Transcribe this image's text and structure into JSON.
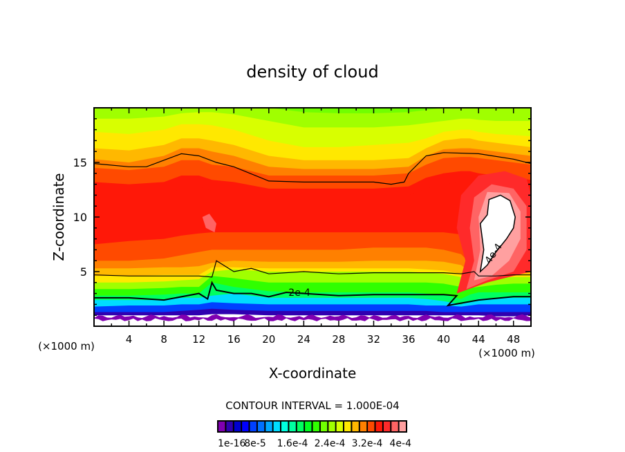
{
  "chart_data": {
    "type": "heatmap",
    "subtype": "filled-contour",
    "title": "density of cloud",
    "xlabel": "X-coordinate",
    "ylabel": "Z-coordinate",
    "x_units": "(×1000 m)",
    "xlim": [
      0,
      50
    ],
    "ylim": [
      0,
      20
    ],
    "x_ticks": [
      4,
      8,
      12,
      16,
      20,
      24,
      28,
      32,
      36,
      40,
      44,
      48
    ],
    "x_minor_step": 2,
    "y_ticks": [
      5,
      10,
      15
    ],
    "y_minor_step": 1,
    "contour_interval_label": "CONTOUR INTERVAL = 1.000E-04",
    "colorbar": {
      "colors": [
        "#8000b0",
        "#3000b0",
        "#0000d0",
        "#0000ff",
        "#0040ff",
        "#0070ff",
        "#00a8ff",
        "#00dcff",
        "#00ffe0",
        "#00ffa0",
        "#00ff60",
        "#00ff20",
        "#30ff00",
        "#70ff00",
        "#a0ff00",
        "#d8ff00",
        "#ffe800",
        "#ffb800",
        "#ff8000",
        "#ff4a00",
        "#ff1808",
        "#ff2a2a",
        "#ff6464",
        "#ffa0a0"
      ],
      "tick_labels": [
        "1e-16",
        "8e-5",
        "1.6e-4",
        "2.4e-4",
        "3.2e-4",
        "4e-4"
      ]
    },
    "contour_labels": [
      {
        "text": "2e-4",
        "x": 23.5,
        "z": 3.1
      },
      {
        "text": "4e-4",
        "x": 46,
        "z": 6.5
      }
    ],
    "band_profiles": {
      "x": [
        0,
        4,
        8,
        10,
        12,
        13.5,
        16,
        20,
        24,
        28,
        32,
        36,
        38,
        40,
        42,
        43,
        44,
        46,
        48,
        50
      ],
      "levels": [
        {
          "color_index": 1,
          "z": [
            1.0,
            1.0,
            1.0,
            1.0,
            1.0,
            1.1,
            1.1,
            1.0,
            1.0,
            1.0,
            1.0,
            1.0,
            1.0,
            1.0,
            1.0,
            1.0,
            1.0,
            0.9,
            0.9,
            1.0
          ]
        },
        {
          "color_index": 4,
          "z": [
            1.3,
            1.3,
            1.3,
            1.4,
            1.5,
            1.6,
            1.5,
            1.4,
            1.4,
            1.4,
            1.4,
            1.4,
            1.4,
            1.3,
            1.3,
            1.3,
            1.3,
            1.3,
            1.3,
            1.3
          ]
        },
        {
          "color_index": 7,
          "z": [
            1.8,
            1.9,
            1.9,
            2.0,
            2.0,
            2.2,
            2.1,
            2.0,
            2.0,
            2.0,
            2.0,
            2.0,
            1.9,
            1.9,
            1.8,
            1.9,
            2.0,
            2.0,
            2.0,
            2.0
          ]
        },
        {
          "color_index": 10,
          "z": [
            2.4,
            2.4,
            2.4,
            2.6,
            2.6,
            2.8,
            3.0,
            2.6,
            2.6,
            2.6,
            2.6,
            2.6,
            2.5,
            2.3,
            2.0,
            2.3,
            2.5,
            2.6,
            2.6,
            2.6
          ]
        },
        {
          "color_index": 12,
          "z": [
            2.8,
            2.8,
            2.9,
            3.0,
            3.0,
            4.0,
            3.6,
            3.2,
            3.1,
            3.1,
            3.1,
            3.1,
            3.0,
            2.9,
            2.5,
            2.9,
            3.1,
            3.1,
            3.1,
            3.1
          ]
        },
        {
          "color_index": 14,
          "z": [
            3.4,
            3.4,
            3.5,
            3.6,
            3.6,
            4.6,
            4.4,
            4.0,
            4.0,
            4.0,
            4.0,
            4.0,
            4.0,
            3.9,
            3.6,
            3.5,
            3.6,
            3.8,
            3.9,
            3.9
          ]
        },
        {
          "color_index": 16,
          "z": [
            4.0,
            4.0,
            4.1,
            4.2,
            4.3,
            5.0,
            5.2,
            5.0,
            5.0,
            5.0,
            5.0,
            5.0,
            4.9,
            4.8,
            4.5,
            4.0,
            4.2,
            4.4,
            4.5,
            4.5
          ]
        },
        {
          "color_index": 17,
          "z": [
            4.6,
            4.6,
            4.7,
            4.7,
            4.7,
            5.4,
            5.4,
            5.3,
            5.3,
            5.3,
            5.3,
            5.3,
            5.2,
            5.1,
            4.8,
            4.3,
            4.5,
            4.7,
            4.8,
            4.8
          ]
        },
        {
          "color_index": 18,
          "z": [
            5.3,
            5.3,
            5.4,
            5.4,
            5.5,
            5.8,
            6.0,
            5.9,
            5.9,
            5.9,
            6.0,
            6.0,
            6.0,
            5.9,
            5.6,
            5.0,
            5.4,
            5.6,
            5.8,
            5.8
          ]
        },
        {
          "color_index": 19,
          "z": [
            6.0,
            6.0,
            6.2,
            6.5,
            6.8,
            7.0,
            7.0,
            7.0,
            7.0,
            7.0,
            7.2,
            7.2,
            7.2,
            7.0,
            6.6,
            5.8,
            6.2,
            6.5,
            6.6,
            6.6
          ]
        },
        {
          "color_index": 20,
          "z": [
            7.5,
            7.8,
            8.0,
            8.3,
            8.5,
            8.6,
            8.6,
            8.6,
            8.6,
            8.6,
            8.6,
            8.6,
            8.6,
            8.6,
            8.4,
            8.0,
            8.2,
            8.4,
            8.5,
            8.5
          ]
        },
        {
          "color_index": 20,
          "z": [
            12.3,
            12.2,
            12.0,
            12.6,
            12.8,
            12.4,
            12.2,
            11.8,
            11.8,
            11.8,
            11.8,
            12.0,
            12.6,
            13.0,
            13.2,
            13.0,
            13.0,
            12.8,
            12.6,
            12.5
          ]
        },
        {
          "color_index": 19,
          "z": [
            13.2,
            13.0,
            13.2,
            13.8,
            13.8,
            13.4,
            13.2,
            12.6,
            12.6,
            12.6,
            12.6,
            12.8,
            13.6,
            14.0,
            14.2,
            14.2,
            14.0,
            13.8,
            13.6,
            13.4
          ]
        },
        {
          "color_index": 18,
          "z": [
            14.5,
            14.3,
            14.6,
            15.2,
            15.2,
            14.8,
            14.6,
            13.8,
            13.8,
            13.8,
            13.8,
            14.0,
            14.8,
            15.4,
            15.5,
            15.5,
            15.4,
            15.2,
            15.0,
            14.8
          ]
        },
        {
          "color_index": 17,
          "z": [
            15.3,
            15.0,
            15.6,
            16.3,
            16.3,
            16.0,
            15.6,
            14.6,
            14.4,
            14.4,
            14.4,
            14.6,
            15.6,
            16.2,
            16.3,
            16.3,
            16.2,
            16.0,
            15.8,
            15.6
          ]
        },
        {
          "color_index": 16,
          "z": [
            16.3,
            16.1,
            16.6,
            17.2,
            17.2,
            17.0,
            16.6,
            15.6,
            15.2,
            15.2,
            15.2,
            15.4,
            16.3,
            17.0,
            17.2,
            17.2,
            17.0,
            16.8,
            16.6,
            16.4
          ]
        },
        {
          "color_index": 15,
          "z": [
            17.8,
            17.6,
            18.0,
            18.5,
            18.5,
            18.4,
            18.0,
            17.0,
            16.4,
            16.4,
            16.6,
            16.8,
            17.2,
            17.8,
            18.0,
            18.0,
            17.8,
            17.6,
            17.5,
            17.4
          ]
        },
        {
          "color_index": 14,
          "z": [
            19.0,
            19.0,
            19.2,
            19.5,
            19.6,
            19.6,
            19.4,
            18.8,
            18.2,
            18.2,
            18.2,
            18.4,
            18.6,
            18.8,
            19.0,
            19.0,
            18.9,
            18.8,
            18.8,
            18.8
          ]
        },
        {
          "color_index": 13,
          "z": [
            20,
            20,
            20,
            20,
            20,
            20,
            20,
            20,
            19.6,
            19.5,
            19.5,
            19.6,
            19.8,
            20,
            20,
            20,
            20,
            20,
            20,
            20
          ]
        }
      ]
    },
    "contour_lines": [
      {
        "level": "1.6e-4 (upper)",
        "x": [
          0,
          4,
          6,
          8,
          10,
          12,
          14,
          16,
          20,
          24,
          28,
          32,
          34,
          35.5,
          36,
          38,
          40,
          44,
          48,
          50
        ],
        "z": [
          14.9,
          14.6,
          14.6,
          15.2,
          15.8,
          15.6,
          15.0,
          14.6,
          13.3,
          13.2,
          13.2,
          13.2,
          13.0,
          13.2,
          14.0,
          15.6,
          15.9,
          15.8,
          15.3,
          14.9
        ]
      },
      {
        "level": "1.6e-4 (lower)",
        "x": [
          0,
          4,
          8,
          12,
          13.5,
          14,
          16,
          18,
          20,
          24,
          28,
          32,
          36,
          40,
          42,
          43.5,
          44,
          46,
          48,
          50
        ],
        "z": [
          4.7,
          4.6,
          4.6,
          4.6,
          4.5,
          6.0,
          5.0,
          5.3,
          4.8,
          5.0,
          4.8,
          4.9,
          4.9,
          4.9,
          4.8,
          5.0,
          4.6,
          4.6,
          4.7,
          4.7
        ]
      },
      {
        "level": "2e-4",
        "x": [
          0,
          4,
          8,
          12,
          13.0,
          13.5,
          14,
          16,
          18,
          20,
          22,
          24,
          28,
          32,
          36,
          40,
          41.5,
          40.5,
          44,
          48,
          50
        ],
        "z": [
          2.6,
          2.6,
          2.4,
          3.0,
          2.5,
          4.0,
          3.3,
          3.0,
          3.0,
          2.7,
          3.1,
          3.0,
          2.8,
          2.9,
          2.9,
          2.9,
          2.8,
          1.9,
          2.4,
          2.7,
          2.7
        ]
      }
    ],
    "white_region_4e-4": {
      "x": [
        45.2,
        46.5,
        47.6,
        48.2,
        48.0,
        47.2,
        46.0,
        45.0,
        44.2,
        44.6,
        44.2,
        45.0,
        45.2
      ],
      "z": [
        11.6,
        12.0,
        11.5,
        10.0,
        9.0,
        8.0,
        6.8,
        5.6,
        5.0,
        7.0,
        9.4,
        10.2,
        11.6
      ]
    }
  }
}
